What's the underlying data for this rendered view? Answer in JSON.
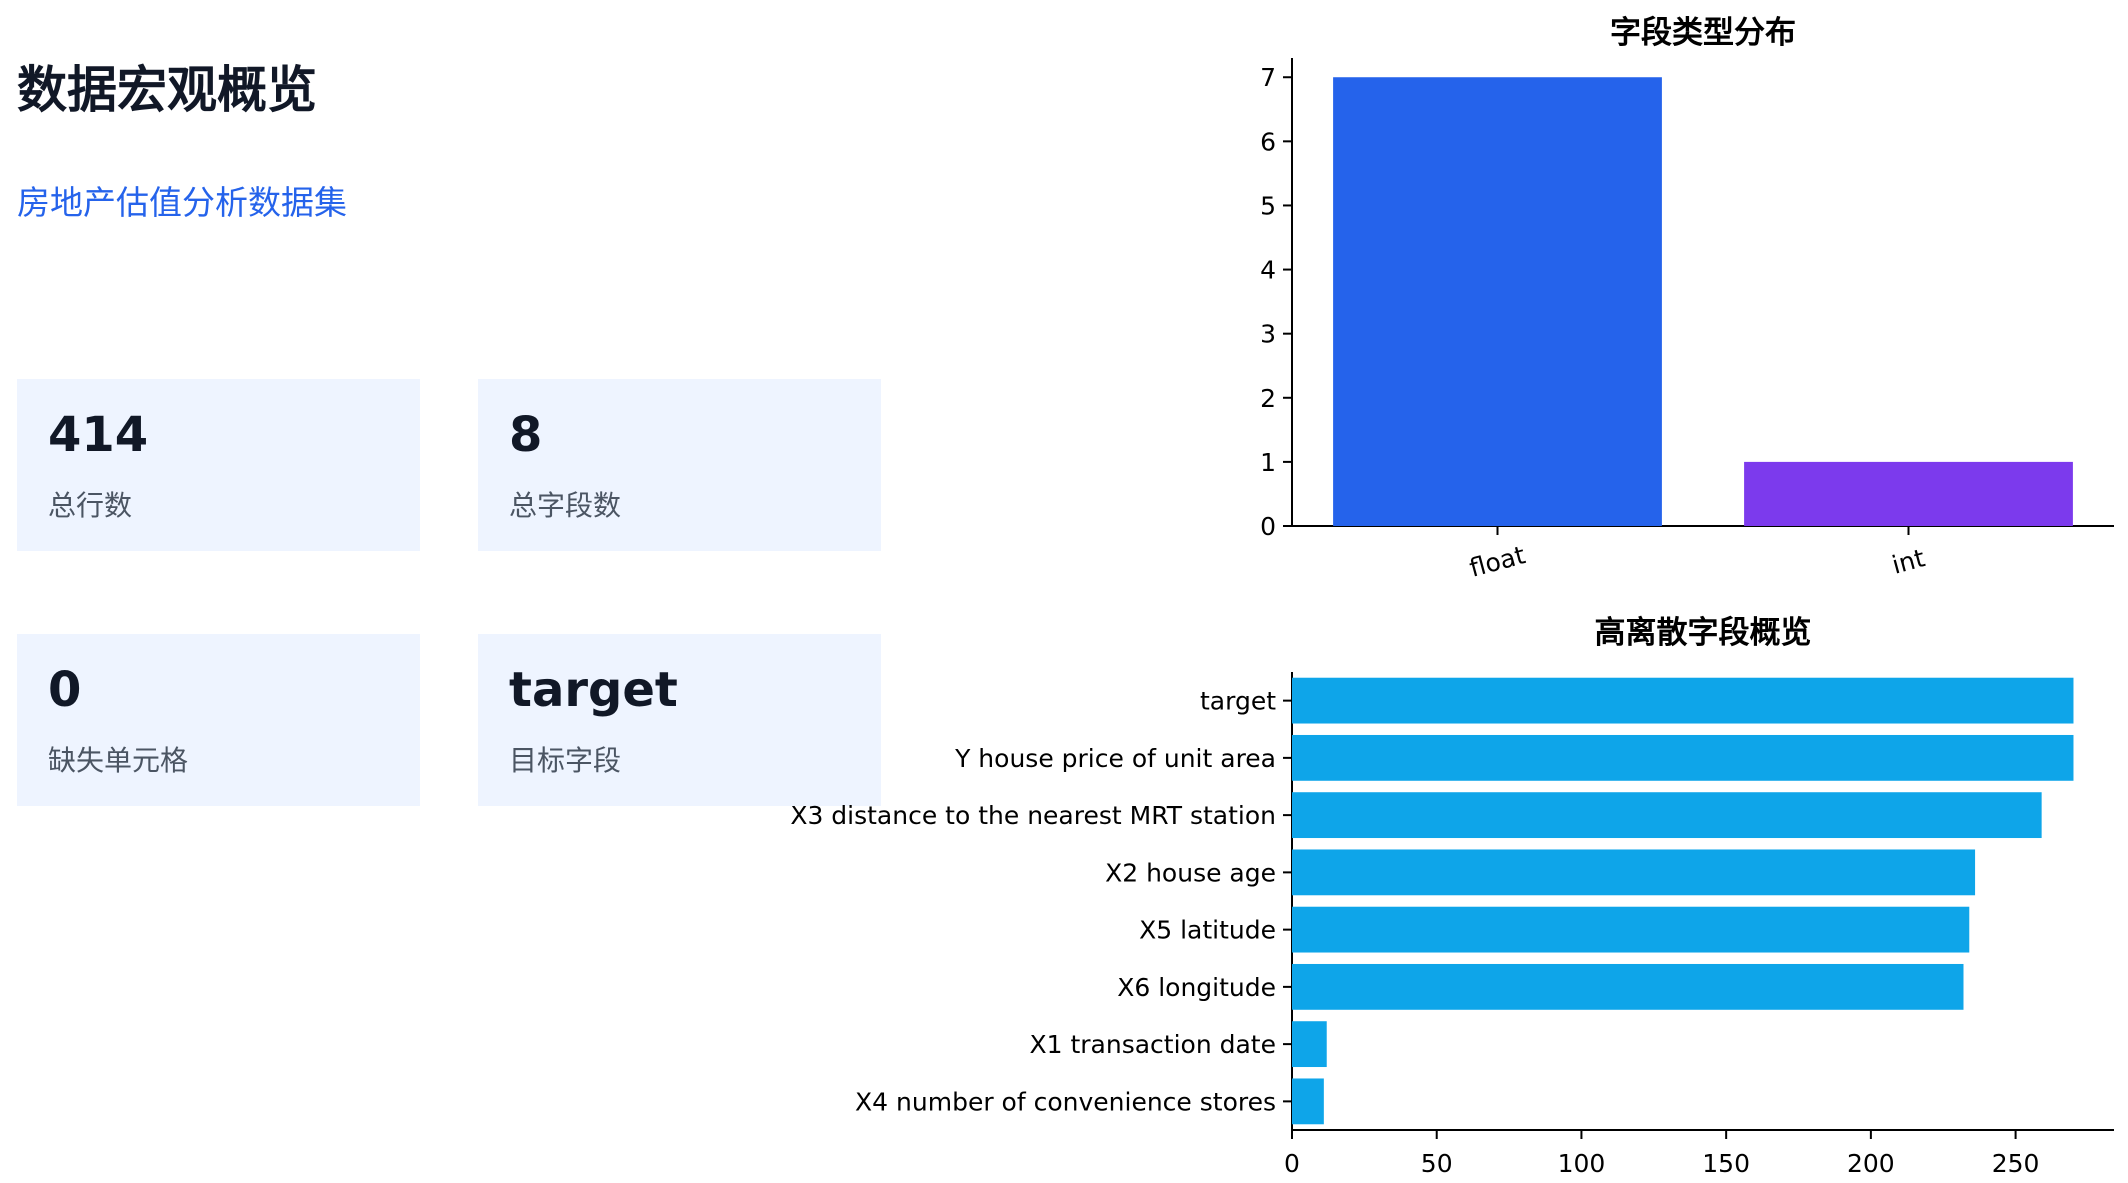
{
  "header": {
    "title": "数据宏观概览",
    "subtitle": "房地产估值分析数据集"
  },
  "cards": [
    {
      "value": "414",
      "label": "总行数"
    },
    {
      "value": "8",
      "label": "总字段数"
    },
    {
      "value": "0",
      "label": "缺失单元格"
    },
    {
      "value": "target",
      "label": "目标字段"
    }
  ],
  "chart_data": [
    {
      "type": "bar",
      "title": "字段类型分布",
      "categories": [
        "float",
        "int"
      ],
      "values": [
        7,
        1
      ],
      "colors": [
        "#2563eb",
        "#7c3aed"
      ],
      "ylim": [
        0,
        7.3
      ],
      "yticks": [
        0,
        1,
        2,
        3,
        4,
        5,
        6,
        7
      ],
      "xlabel": "",
      "ylabel": "",
      "grid": false
    },
    {
      "type": "bar",
      "orientation": "horizontal",
      "title": "高离散字段概览",
      "categories": [
        "target",
        "Y house price of unit area",
        "X3 distance to the nearest MRT station",
        "X2 house age",
        "X5 latitude",
        "X6 longitude",
        "X1 transaction date",
        "X4 number of convenience stores"
      ],
      "values": [
        270,
        270,
        259,
        236,
        234,
        232,
        12,
        11
      ],
      "color": "#0ea5e9",
      "xlim": [
        0,
        284
      ],
      "xticks": [
        0,
        50,
        100,
        150,
        200,
        250
      ],
      "xlabel": "",
      "ylabel": "",
      "grid": false
    }
  ]
}
